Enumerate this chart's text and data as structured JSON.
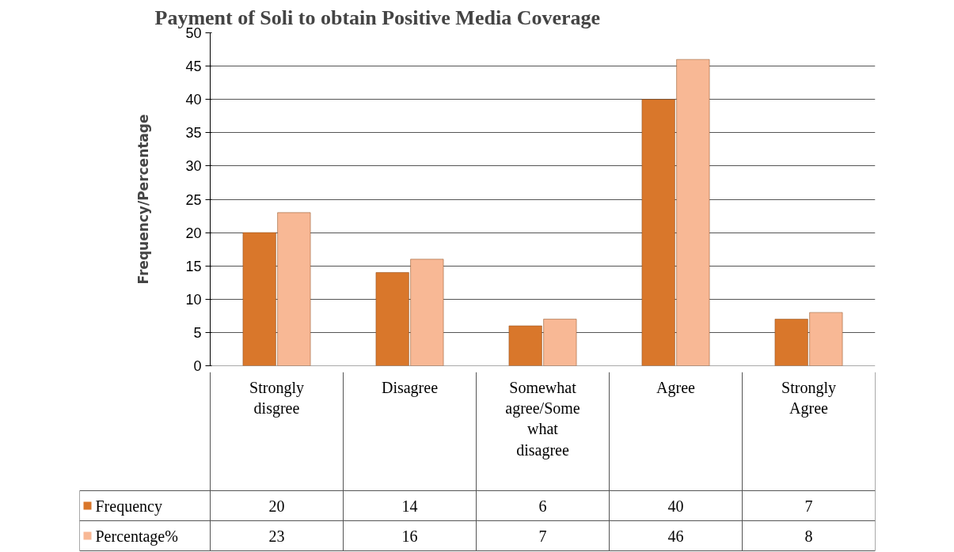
{
  "chart_data": {
    "type": "bar",
    "title": "Payment of Soli to obtain Positive Media Coverage",
    "ylabel": "Frequency/Percentage",
    "categories": [
      "Strongly disgree",
      "Disagree",
      "Somewhat agree/Some what disagree",
      "Agree",
      "Strongly Agree"
    ],
    "series": [
      {
        "name": "Frequency",
        "color": "#d9772b",
        "values": [
          20,
          14,
          6,
          40,
          7
        ]
      },
      {
        "name": "Percentage%",
        "color": "#f8b895",
        "values": [
          23,
          16,
          7,
          46,
          8
        ]
      }
    ],
    "ylim": [
      0,
      50
    ],
    "yticks": [
      0,
      5,
      10,
      15,
      20,
      25,
      30,
      35,
      40,
      45,
      50
    ],
    "grid": "y",
    "data_labels": true,
    "legend": "bottom"
  }
}
